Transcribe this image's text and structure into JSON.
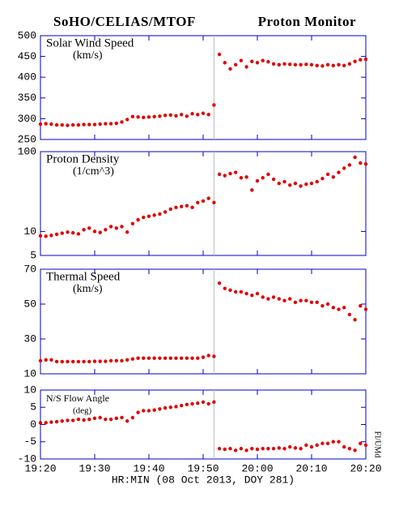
{
  "header": {
    "left": "SoHO/CELIAS/MTOF",
    "right": "Proton Monitor",
    "credit": "FI/UMd"
  },
  "chart_data": [
    {
      "type": "scatter",
      "title": "Solar Wind Speed",
      "units": "(km/s)",
      "color": "#e00000",
      "scale": "linear",
      "vline": "19:52",
      "x": [
        "19:20",
        "19:21",
        "19:22",
        "19:23",
        "19:24",
        "19:25",
        "19:26",
        "19:27",
        "19:28",
        "19:29",
        "19:30",
        "19:31",
        "19:32",
        "19:33",
        "19:34",
        "19:35",
        "19:36",
        "19:37",
        "19:38",
        "19:39",
        "19:40",
        "19:41",
        "19:42",
        "19:43",
        "19:44",
        "19:45",
        "19:46",
        "19:47",
        "19:48",
        "19:49",
        "19:50",
        "19:51",
        "19:52",
        "19:53",
        "19:54",
        "19:55",
        "19:56",
        "19:57",
        "19:58",
        "19:59",
        "20:00",
        "20:01",
        "20:02",
        "20:03",
        "20:04",
        "20:05",
        "20:06",
        "20:07",
        "20:08",
        "20:09",
        "20:10",
        "20:11",
        "20:12",
        "20:13",
        "20:14",
        "20:15",
        "20:16",
        "20:17",
        "20:18",
        "20:19",
        "20:20"
      ],
      "values": [
        287,
        288,
        287,
        285,
        285,
        284,
        285,
        285,
        286,
        286,
        286,
        287,
        288,
        288,
        289,
        292,
        298,
        305,
        304,
        303,
        304,
        305,
        306,
        308,
        309,
        307,
        310,
        306,
        312,
        310,
        313,
        310,
        333,
        455,
        435,
        420,
        430,
        440,
        425,
        438,
        435,
        440,
        437,
        432,
        430,
        432,
        431,
        430,
        430,
        431,
        430,
        428,
        427,
        430,
        428,
        430,
        428,
        432,
        438,
        442,
        443
      ],
      "xlim": [
        "19:20",
        "20:20"
      ],
      "ylim": [
        250,
        500
      ],
      "yticks": [
        250,
        300,
        350,
        400,
        450,
        500
      ]
    },
    {
      "type": "scatter",
      "title": "Proton Density",
      "units": "(1/cm^3)",
      "color": "#e00000",
      "scale": "log",
      "vline": "19:52",
      "x": [
        "19:20",
        "19:21",
        "19:22",
        "19:23",
        "19:24",
        "19:25",
        "19:26",
        "19:27",
        "19:28",
        "19:29",
        "19:30",
        "19:31",
        "19:32",
        "19:33",
        "19:34",
        "19:35",
        "19:36",
        "19:37",
        "19:38",
        "19:39",
        "19:40",
        "19:41",
        "19:42",
        "19:43",
        "19:44",
        "19:45",
        "19:46",
        "19:47",
        "19:48",
        "19:49",
        "19:50",
        "19:51",
        "19:52",
        "19:53",
        "19:54",
        "19:55",
        "19:56",
        "19:57",
        "19:58",
        "19:59",
        "20:00",
        "20:01",
        "20:02",
        "20:03",
        "20:04",
        "20:05",
        "20:06",
        "20:07",
        "20:08",
        "20:09",
        "20:10",
        "20:11",
        "20:12",
        "20:13",
        "20:14",
        "20:15",
        "20:16",
        "20:17",
        "20:18",
        "20:19",
        "20:20"
      ],
      "values": [
        8.8,
        8.7,
        8.9,
        9.2,
        9.5,
        9.8,
        9.6,
        9.3,
        10.5,
        11,
        10,
        9.7,
        10.5,
        11.5,
        11,
        11.5,
        9.8,
        12.5,
        14,
        15,
        15.5,
        16,
        16.5,
        17.5,
        19,
        20,
        20.5,
        21,
        20,
        23,
        24,
        26,
        23,
        52,
        50,
        53,
        55,
        47,
        48,
        33,
        43,
        47,
        52,
        45,
        40,
        42,
        38,
        40,
        37,
        39,
        40,
        42,
        46,
        52,
        48,
        55,
        62,
        68,
        85,
        72,
        70
      ],
      "xlim": [
        "19:20",
        "20:20"
      ],
      "ylim": [
        5,
        100
      ],
      "yticks": [
        5,
        10,
        100
      ]
    },
    {
      "type": "scatter",
      "title": "Thermal Speed",
      "units": "(km/s)",
      "color": "#e00000",
      "scale": "linear",
      "vline": "19:52",
      "x": [
        "19:20",
        "19:21",
        "19:22",
        "19:23",
        "19:24",
        "19:25",
        "19:26",
        "19:27",
        "19:28",
        "19:29",
        "19:30",
        "19:31",
        "19:32",
        "19:33",
        "19:34",
        "19:35",
        "19:36",
        "19:37",
        "19:38",
        "19:39",
        "19:40",
        "19:41",
        "19:42",
        "19:43",
        "19:44",
        "19:45",
        "19:46",
        "19:47",
        "19:48",
        "19:49",
        "19:50",
        "19:51",
        "19:52",
        "19:53",
        "19:54",
        "19:55",
        "19:56",
        "19:57",
        "19:58",
        "19:59",
        "20:00",
        "20:01",
        "20:02",
        "20:03",
        "20:04",
        "20:05",
        "20:06",
        "20:07",
        "20:08",
        "20:09",
        "20:10",
        "20:11",
        "20:12",
        "20:13",
        "20:14",
        "20:15",
        "20:16",
        "20:17",
        "20:18",
        "20:19",
        "20:20"
      ],
      "values": [
        17.5,
        18,
        18,
        17,
        17,
        17,
        17,
        17,
        17,
        17,
        17.2,
        17.2,
        17.2,
        17.5,
        17.5,
        17.5,
        18,
        18.5,
        19,
        19,
        19,
        19,
        19,
        19,
        19,
        19,
        19,
        19,
        19,
        19,
        19.5,
        20.5,
        20,
        62,
        59,
        58,
        57,
        57,
        56,
        55,
        56,
        54,
        53,
        54,
        53,
        52,
        53,
        51,
        52,
        52,
        51,
        51,
        49,
        50,
        48,
        47,
        48,
        44,
        41,
        49,
        47
      ],
      "xlim": [
        "19:20",
        "20:20"
      ],
      "ylim": [
        10,
        70
      ],
      "yticks": [
        10,
        30,
        50,
        70
      ]
    },
    {
      "type": "scatter",
      "title": "N/S Flow Angle",
      "units": "(deg)",
      "color": "#e00000",
      "scale": "linear",
      "vline": "19:52",
      "x": [
        "19:20",
        "19:21",
        "19:22",
        "19:23",
        "19:24",
        "19:25",
        "19:26",
        "19:27",
        "19:28",
        "19:29",
        "19:30",
        "19:31",
        "19:32",
        "19:33",
        "19:34",
        "19:35",
        "19:36",
        "19:37",
        "19:38",
        "19:39",
        "19:40",
        "19:41",
        "19:42",
        "19:43",
        "19:44",
        "19:45",
        "19:46",
        "19:47",
        "19:48",
        "19:49",
        "19:50",
        "19:51",
        "19:52",
        "19:53",
        "19:54",
        "19:55",
        "19:56",
        "19:57",
        "19:58",
        "19:59",
        "20:00",
        "20:01",
        "20:02",
        "20:03",
        "20:04",
        "20:05",
        "20:06",
        "20:07",
        "20:08",
        "20:09",
        "20:10",
        "20:11",
        "20:12",
        "20:13",
        "20:14",
        "20:15",
        "20:16",
        "20:17",
        "20:18",
        "20:19",
        "20:20"
      ],
      "values": [
        0.5,
        0.5,
        0.7,
        0.8,
        1,
        1.2,
        1.2,
        1.5,
        1.3,
        1.5,
        1.8,
        2,
        1.5,
        1.5,
        1.8,
        2,
        1,
        2,
        3.5,
        4,
        4,
        4.2,
        4.5,
        4.8,
        5,
        5.2,
        5.5,
        5.8,
        6,
        6.2,
        6.5,
        6,
        6.5,
        -7,
        -7.2,
        -7,
        -7.5,
        -7,
        -7.5,
        -7,
        -7.2,
        -7,
        -7,
        -7,
        -6.8,
        -7,
        -6.5,
        -6.8,
        -7,
        -6,
        -6.5,
        -6,
        -5.5,
        -5.5,
        -5,
        -5,
        -6.5,
        -7,
        -7.5,
        -5.5,
        -6
      ],
      "xlim": [
        "19:20",
        "20:20"
      ],
      "ylim": [
        -10,
        10
      ],
      "yticks": [
        -10,
        -5,
        0,
        5,
        10
      ],
      "xticks": [
        "19:20",
        "19:30",
        "19:40",
        "19:50",
        "20:00",
        "20:10",
        "20:20"
      ],
      "xlabel": "HR:MIN (08 Oct 2013, DOY 281)"
    }
  ]
}
